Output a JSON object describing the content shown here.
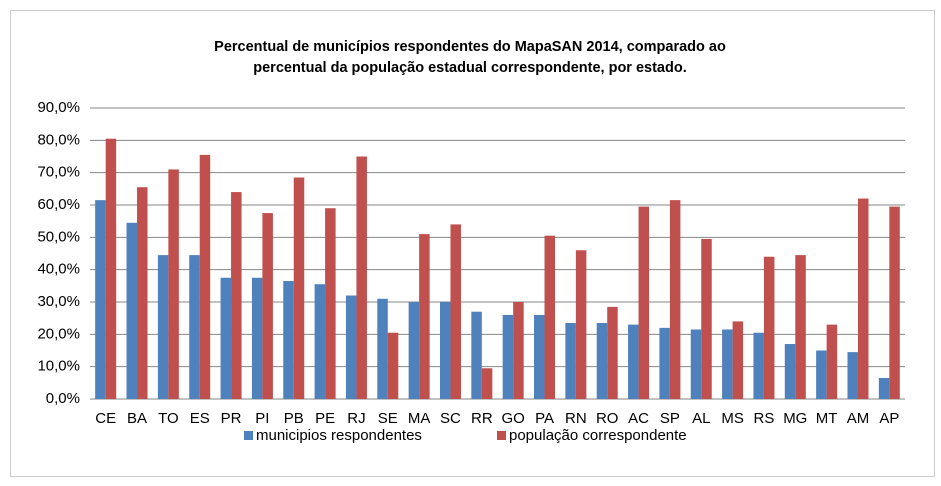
{
  "chart_data": {
    "type": "bar",
    "title": [
      "Percentual de municípios respondentes do MapaSAN 2014, comparado ao",
      "percentual da população estadual correspondente, por estado."
    ],
    "categories": [
      "CE",
      "BA",
      "TO",
      "ES",
      "PR",
      "PI",
      "PB",
      "PE",
      "RJ",
      "SE",
      "MA",
      "SC",
      "RR",
      "GO",
      "PA",
      "RN",
      "RO",
      "AC",
      "SP",
      "AL",
      "MS",
      "RS",
      "MG",
      "MT",
      "AM",
      "AP"
    ],
    "series": [
      {
        "name": "municipios respondentes",
        "color": "#4f81bd",
        "values": [
          61.5,
          54.5,
          44.5,
          44.5,
          37.5,
          37.5,
          36.5,
          35.5,
          32,
          31,
          30,
          30,
          27,
          26,
          26,
          23.5,
          23.5,
          23,
          22,
          21.5,
          21.5,
          20.5,
          17,
          15,
          14.5,
          6.5
        ]
      },
      {
        "name": "população correspondente",
        "color": "#c0504d",
        "values": [
          80.5,
          65.5,
          71,
          75.5,
          64,
          57.5,
          68.5,
          59,
          75,
          20.5,
          51,
          54,
          9.5,
          30,
          50.5,
          46,
          28.5,
          59.5,
          61.5,
          49.5,
          24,
          44,
          44.5,
          23,
          62,
          59.5
        ]
      }
    ],
    "ylim": [
      0,
      90
    ],
    "yticks": [
      {
        "value": 0,
        "label": "0,0%"
      },
      {
        "value": 10,
        "label": "10,0%"
      },
      {
        "value": 20,
        "label": "20,0%"
      },
      {
        "value": 30,
        "label": "30,0%"
      },
      {
        "value": 40,
        "label": "40,0%"
      },
      {
        "value": 50,
        "label": "50,0%"
      },
      {
        "value": 60,
        "label": "60,0%"
      },
      {
        "value": 70,
        "label": "70,0%"
      },
      {
        "value": 80,
        "label": "80,0%"
      },
      {
        "value": 90,
        "label": "90,0%"
      }
    ],
    "grid": true,
    "legend": "bottom"
  }
}
